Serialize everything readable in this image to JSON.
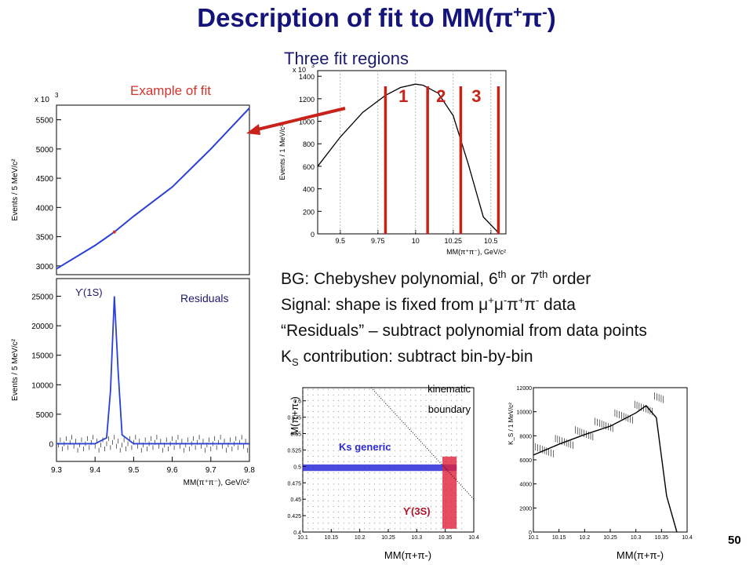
{
  "slide": {
    "title_main": "Description of fit to MM(",
    "title_pi": "π",
    "title_plus": "+",
    "title_pi2": "π",
    "title_minus": "-",
    "title_close": ")",
    "subtitle": "Three fit regions",
    "example_label": "Example of fit",
    "slide_number": "50",
    "bullets": {
      "b1_text": "BG: Chebyshev polynomial, 6",
      "b1_sup1": "th",
      "b1_mid": " or 7",
      "b1_sup2": "th",
      "b1_end": " order",
      "b2_text": "Signal: shape is fixed from ",
      "b2_mu": "μ",
      "b2_plus": "+",
      "b2_mu2": "μ",
      "b2_minus": "-",
      "b2_pi": "π",
      "b2_plus2": "+",
      "b2_pi2": "π",
      "b2_minus2": "-",
      "b2_end": " data",
      "b3": "“Residuals” – subtract polynomial from data points",
      "b4_k": "K",
      "b4_sub": "S",
      "b4_end": " contribution: subtract bin-by-bin"
    }
  },
  "colors": {
    "title": "#14147a",
    "fit_line": "#2a3fd6",
    "region_line": "#c8231b",
    "ks_band": "#2a2ad8",
    "ups_band": "#e0203a"
  },
  "chart_data": [
    {
      "type": "line",
      "name": "fit-top",
      "x": [
        9.3,
        9.4,
        9.45,
        9.5,
        9.6,
        9.7,
        9.8
      ],
      "y": [
        2950,
        3350,
        3580,
        3850,
        4350,
        5000,
        5700
      ],
      "xlim": [
        9.3,
        9.8
      ],
      "ylim": [
        2850,
        5750
      ],
      "yticks": [
        "3000",
        "3500",
        "4000",
        "4500",
        "5000",
        "5500"
      ],
      "multiplier": "x 10",
      "multiplier_exp": "3",
      "ylabel": "Events / 5 MeV/c²"
    },
    {
      "type": "line",
      "name": "residuals",
      "x": [
        9.3,
        9.4,
        9.43,
        9.44,
        9.45,
        9.46,
        9.47,
        9.5,
        9.6,
        9.8
      ],
      "y": [
        0,
        0,
        1000,
        9000,
        25000,
        12000,
        1500,
        0,
        0,
        0
      ],
      "xlim": [
        9.3,
        9.8
      ],
      "ylim": [
        -3000,
        28000
      ],
      "xticks": [
        "9.3",
        "9.4",
        "9.5",
        "9.6",
        "9.7",
        "9.8"
      ],
      "yticks": [
        "0",
        "5000",
        "10000",
        "15000",
        "20000",
        "25000"
      ],
      "xlabel": "MM(π⁺π⁻), GeV/c²",
      "ylabel": "Events / 5 MeV/c²",
      "legend_residuals": "Residuals",
      "peak_label": "ϒ(1S)"
    },
    {
      "type": "line",
      "name": "three-regions",
      "x": [
        9.35,
        9.5,
        9.65,
        9.8,
        9.9,
        10.0,
        10.05,
        10.15,
        10.25,
        10.35,
        10.45,
        10.55
      ],
      "y": [
        600,
        860,
        1080,
        1230,
        1300,
        1330,
        1320,
        1250,
        1050,
        620,
        150,
        10
      ],
      "xlim": [
        9.35,
        10.6
      ],
      "ylim": [
        0,
        1450
      ],
      "xticks": [
        "9.5",
        "9.75",
        "10",
        "10.25",
        "10.5"
      ],
      "yticks": [
        "0",
        "200",
        "400",
        "600",
        "800",
        "1000",
        "1200",
        "1400"
      ],
      "multiplier": "x 10",
      "multiplier_exp": "3",
      "xlabel": "MM(π⁺π⁻), GeV/c²",
      "ylabel": "Events / 1 MeV/c²",
      "region_boundaries": [
        9.8,
        10.08,
        10.3,
        10.55
      ],
      "region_labels": [
        "1",
        "2",
        "3"
      ]
    },
    {
      "type": "scatter",
      "name": "ks-2d",
      "xlim": [
        10.1,
        10.4
      ],
      "ylim": [
        0.4,
        0.62
      ],
      "xticks": [
        "10.1",
        "10.15",
        "10.2",
        "10.25",
        "10.3",
        "10.35",
        "10.4"
      ],
      "yticks": [
        "0.4",
        "0.425",
        "0.45",
        "0.475",
        "0.5",
        "0.525",
        "0.55",
        "0.575",
        "0.6"
      ],
      "xlabel": "MM(π+π-)",
      "ylabel": "M(π+π-)",
      "band_label": "Ks generic",
      "ups_label": "ϒ(3S)",
      "boundary_label_1": "kinematic",
      "boundary_label_2": "boundary"
    },
    {
      "type": "line",
      "name": "ks-projection",
      "x": [
        10.1,
        10.15,
        10.2,
        10.25,
        10.3,
        10.32,
        10.34,
        10.36,
        10.38
      ],
      "y": [
        6400,
        7300,
        8100,
        8800,
        9900,
        10500,
        9500,
        3000,
        0
      ],
      "xlim": [
        10.1,
        10.4
      ],
      "ylim": [
        0,
        12000
      ],
      "xticks": [
        "10.1",
        "10.15",
        "10.2",
        "10.25",
        "10.3",
        "10.35",
        "10.4"
      ],
      "yticks": [
        "0",
        "2000",
        "4000",
        "6000",
        "8000",
        "10000",
        "12000"
      ],
      "xlabel": "MM(π+π-)",
      "ylabel": "K_S / 1 MeV/c²"
    }
  ]
}
